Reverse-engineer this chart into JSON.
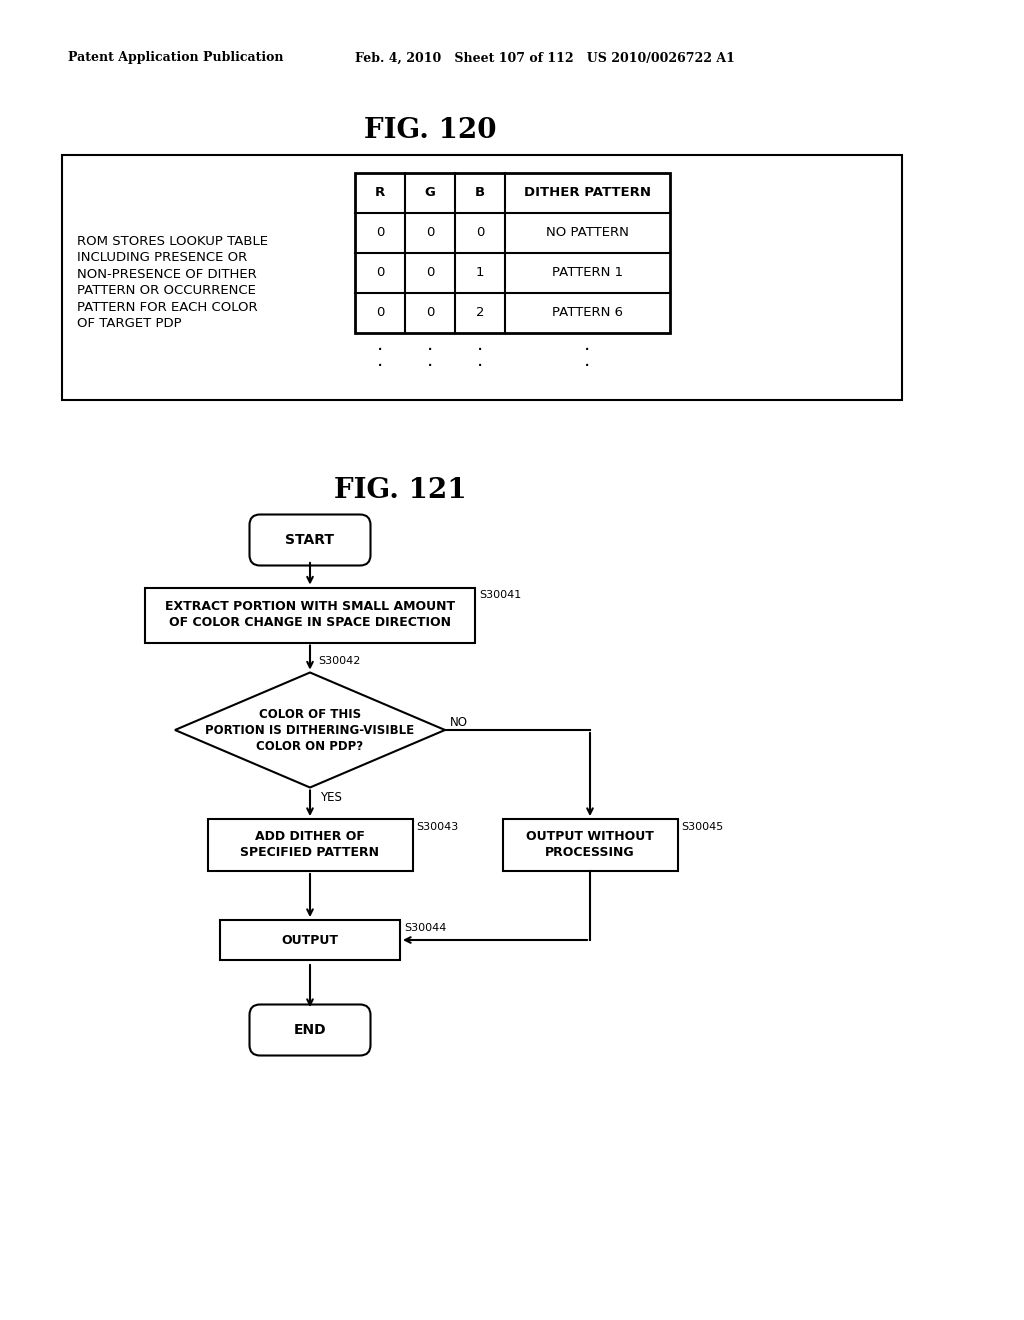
{
  "header_left": "Patent Application Publication",
  "header_mid": "Feb. 4, 2010   Sheet 107 of 112   US 2010/0026722 A1",
  "fig120_title": "FIG. 120",
  "fig121_title": "FIG. 121",
  "rom_text": "ROM STORES LOOKUP TABLE\nINCLUDING PRESENCE OR\nNON-PRESENCE OF DITHER\nPATTERN OR OCCURRENCE\nPATTERN FOR EACH COLOR\nOF TARGET PDP",
  "table_headers": [
    "R",
    "G",
    "B",
    "DITHER PATTERN"
  ],
  "table_rows": [
    [
      "0",
      "0",
      "0",
      "NO PATTERN"
    ],
    [
      "0",
      "0",
      "1",
      "PATTERN 1"
    ],
    [
      "0",
      "0",
      "2",
      "PATTERN 6"
    ]
  ],
  "flowchart": {
    "start": "START",
    "s30041_label": "EXTRACT PORTION WITH SMALL AMOUNT\nOF COLOR CHANGE IN SPACE DIRECTION",
    "s30041_id": "S30041",
    "s30042_label": "COLOR OF THIS\nPORTION IS DITHERING-VISIBLE\nCOLOR ON PDP?",
    "s30042_id": "S30042",
    "s30043_label": "ADD DITHER OF\nSPECIFIED PATTERN",
    "s30043_id": "S30043",
    "s30044_label": "OUTPUT",
    "s30044_id": "S30044",
    "s30045_label": "OUTPUT WITHOUT\nPROCESSING",
    "s30045_id": "S30045",
    "end": "END",
    "yes_label": "YES",
    "no_label": "NO"
  },
  "bg_color": "#ffffff",
  "text_color": "#000000"
}
